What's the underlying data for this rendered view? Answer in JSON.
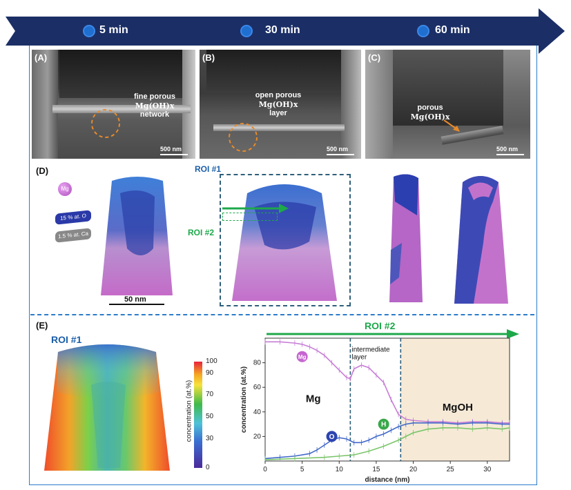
{
  "timeline": {
    "items": [
      {
        "label": "5 min"
      },
      {
        "label": "30 min"
      },
      {
        "label": "60 min"
      }
    ],
    "color": "#1b2f66"
  },
  "panels": {
    "A": {
      "label": "(A)",
      "annotation_lines": [
        "fine porous",
        "Mg(OH)x",
        "network"
      ],
      "scale": "500 nm"
    },
    "B": {
      "label": "(B)",
      "annotation_lines": [
        "open porous",
        "Mg(OH)x",
        "layer"
      ],
      "scale": "500 nm"
    },
    "C": {
      "label": "(C)",
      "annotation_lines": [
        "porous",
        "Mg(OH)x"
      ],
      "scale": "500 nm"
    },
    "D": {
      "label": "(D)",
      "legend": {
        "mg": "Mg",
        "o": "15 % at. O",
        "ca": "1.5 % at. Ca"
      },
      "roi1": "ROI #1",
      "roi2": "ROI #2",
      "scale": "50 nm"
    },
    "E": {
      "label": "(E)",
      "roi1": "ROI #1",
      "roi2": "ROI #2",
      "colorbar": {
        "label": "concentration (at.%)",
        "ticks": [
          "100",
          "90",
          "70",
          "50",
          "30",
          "0"
        ]
      }
    }
  },
  "chart_data": {
    "type": "line",
    "title": "",
    "xlabel": "distance (nm)",
    "ylabel": "concentration (at.%)",
    "xlim": [
      0,
      33
    ],
    "ylim": [
      0,
      100
    ],
    "x_ticks": [
      "0",
      "5",
      "10",
      "15",
      "20",
      "25",
      "30"
    ],
    "y_ticks": [
      "20",
      "40",
      "60",
      "80"
    ],
    "region_labels": {
      "mg": "Mg",
      "intermediate": "intermediate\nlayer",
      "mgoh": "MgOH"
    },
    "region_bounds": [
      11.5,
      18.3
    ],
    "series": [
      {
        "name": "Mg",
        "color": "#c77dd6",
        "x": [
          0,
          2,
          4,
          5,
          6,
          7,
          8,
          9,
          10,
          11,
          11.5,
          12,
          13,
          14,
          15,
          16,
          17,
          18,
          19,
          20,
          22,
          24,
          26,
          28,
          30,
          32,
          33
        ],
        "values": [
          97,
          97,
          96,
          95,
          93,
          90,
          86,
          80,
          74,
          68,
          67,
          75,
          78,
          76,
          70,
          64,
          50,
          38,
          34,
          33,
          32,
          32,
          31,
          32,
          32,
          31,
          31
        ]
      },
      {
        "name": "O",
        "color": "#4169c9",
        "x": [
          0,
          2,
          4,
          6,
          7,
          8,
          9,
          10,
          11,
          12,
          13,
          14,
          15,
          16,
          17,
          18,
          19,
          20,
          22,
          24,
          26,
          28,
          30,
          32,
          33
        ],
        "values": [
          2,
          3,
          4,
          6,
          9,
          13,
          17,
          19,
          18,
          15,
          15,
          17,
          20,
          22,
          25,
          28,
          30,
          31,
          31,
          31,
          30,
          31,
          31,
          30,
          30
        ]
      },
      {
        "name": "H",
        "color": "#7ac56a",
        "x": [
          0,
          4,
          8,
          10,
          12,
          14,
          16,
          18,
          19,
          20,
          22,
          24,
          26,
          28,
          30,
          32,
          33
        ],
        "values": [
          1,
          2,
          3,
          4,
          5,
          8,
          12,
          17,
          20,
          23,
          26,
          27,
          27,
          26,
          27,
          26,
          27
        ]
      }
    ],
    "colors": {
      "panel_bg": "#f6ead7",
      "roi2_arrow": "#1da84a",
      "dashed_lines": "#2d5e7a"
    }
  }
}
